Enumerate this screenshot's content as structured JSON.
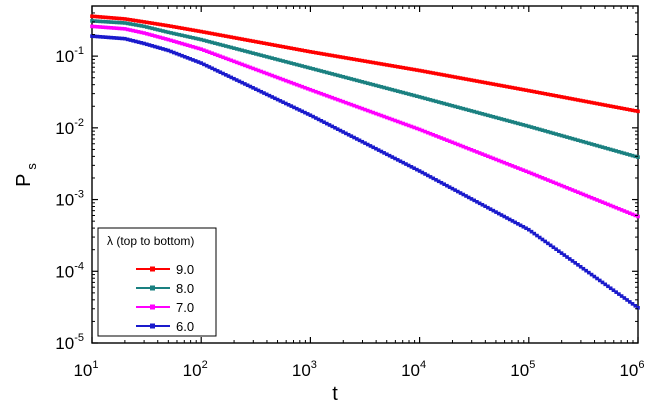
{
  "chart_data": {
    "type": "line",
    "xscale": "log",
    "yscale": "log",
    "xlim": [
      10,
      1000000
    ],
    "ylim": [
      1e-05,
      0.5
    ],
    "xlabel": "t",
    "ylabel_main": "P",
    "ylabel_sub": "s",
    "x_ticks": [
      {
        "base": "10",
        "exp": "1",
        "value": 10
      },
      {
        "base": "10",
        "exp": "2",
        "value": 100
      },
      {
        "base": "10",
        "exp": "3",
        "value": 1000
      },
      {
        "base": "10",
        "exp": "4",
        "value": 10000
      },
      {
        "base": "10",
        "exp": "5",
        "value": 100000
      },
      {
        "base": "10",
        "exp": "6",
        "value": 1000000
      }
    ],
    "y_ticks": [
      {
        "base": "10",
        "exp": "-5",
        "value": 1e-05
      },
      {
        "base": "10",
        "exp": "-4",
        "value": 0.0001
      },
      {
        "base": "10",
        "exp": "-3",
        "value": 0.001
      },
      {
        "base": "10",
        "exp": "-2",
        "value": 0.01
      },
      {
        "base": "10",
        "exp": "-1",
        "value": 0.1
      }
    ],
    "legend": {
      "title": "λ (top to bottom)",
      "placement": "bottom-left"
    },
    "grid": false,
    "series": [
      {
        "name": "9.0",
        "color": "#ff0000",
        "points": [
          [
            10,
            0.36
          ],
          [
            20,
            0.33
          ],
          [
            30,
            0.3
          ],
          [
            50,
            0.265
          ],
          [
            100,
            0.22
          ],
          [
            1000,
            0.115
          ],
          [
            10000,
            0.063
          ],
          [
            100000,
            0.033
          ],
          [
            1000000,
            0.017
          ]
        ]
      },
      {
        "name": "8.0",
        "color": "#1a8080",
        "points": [
          [
            10,
            0.31
          ],
          [
            20,
            0.29
          ],
          [
            30,
            0.26
          ],
          [
            50,
            0.215
          ],
          [
            100,
            0.17
          ],
          [
            1000,
            0.068
          ],
          [
            10000,
            0.027
          ],
          [
            100000,
            0.0105
          ],
          [
            1000000,
            0.0039
          ]
        ]
      },
      {
        "name": "7.0",
        "color": "#ff00ff",
        "points": [
          [
            10,
            0.26
          ],
          [
            20,
            0.24
          ],
          [
            30,
            0.21
          ],
          [
            50,
            0.17
          ],
          [
            100,
            0.125
          ],
          [
            1000,
            0.034
          ],
          [
            10000,
            0.0095
          ],
          [
            100000,
            0.0024
          ],
          [
            1000000,
            0.00058
          ]
        ]
      },
      {
        "name": "6.0",
        "color": "#1a1acc",
        "points": [
          [
            10,
            0.19
          ],
          [
            20,
            0.175
          ],
          [
            30,
            0.15
          ],
          [
            50,
            0.12
          ],
          [
            100,
            0.08
          ],
          [
            1000,
            0.015
          ],
          [
            10000,
            0.0025
          ],
          [
            100000,
            0.00038
          ],
          [
            1000000,
            3.1e-05
          ]
        ]
      }
    ]
  }
}
